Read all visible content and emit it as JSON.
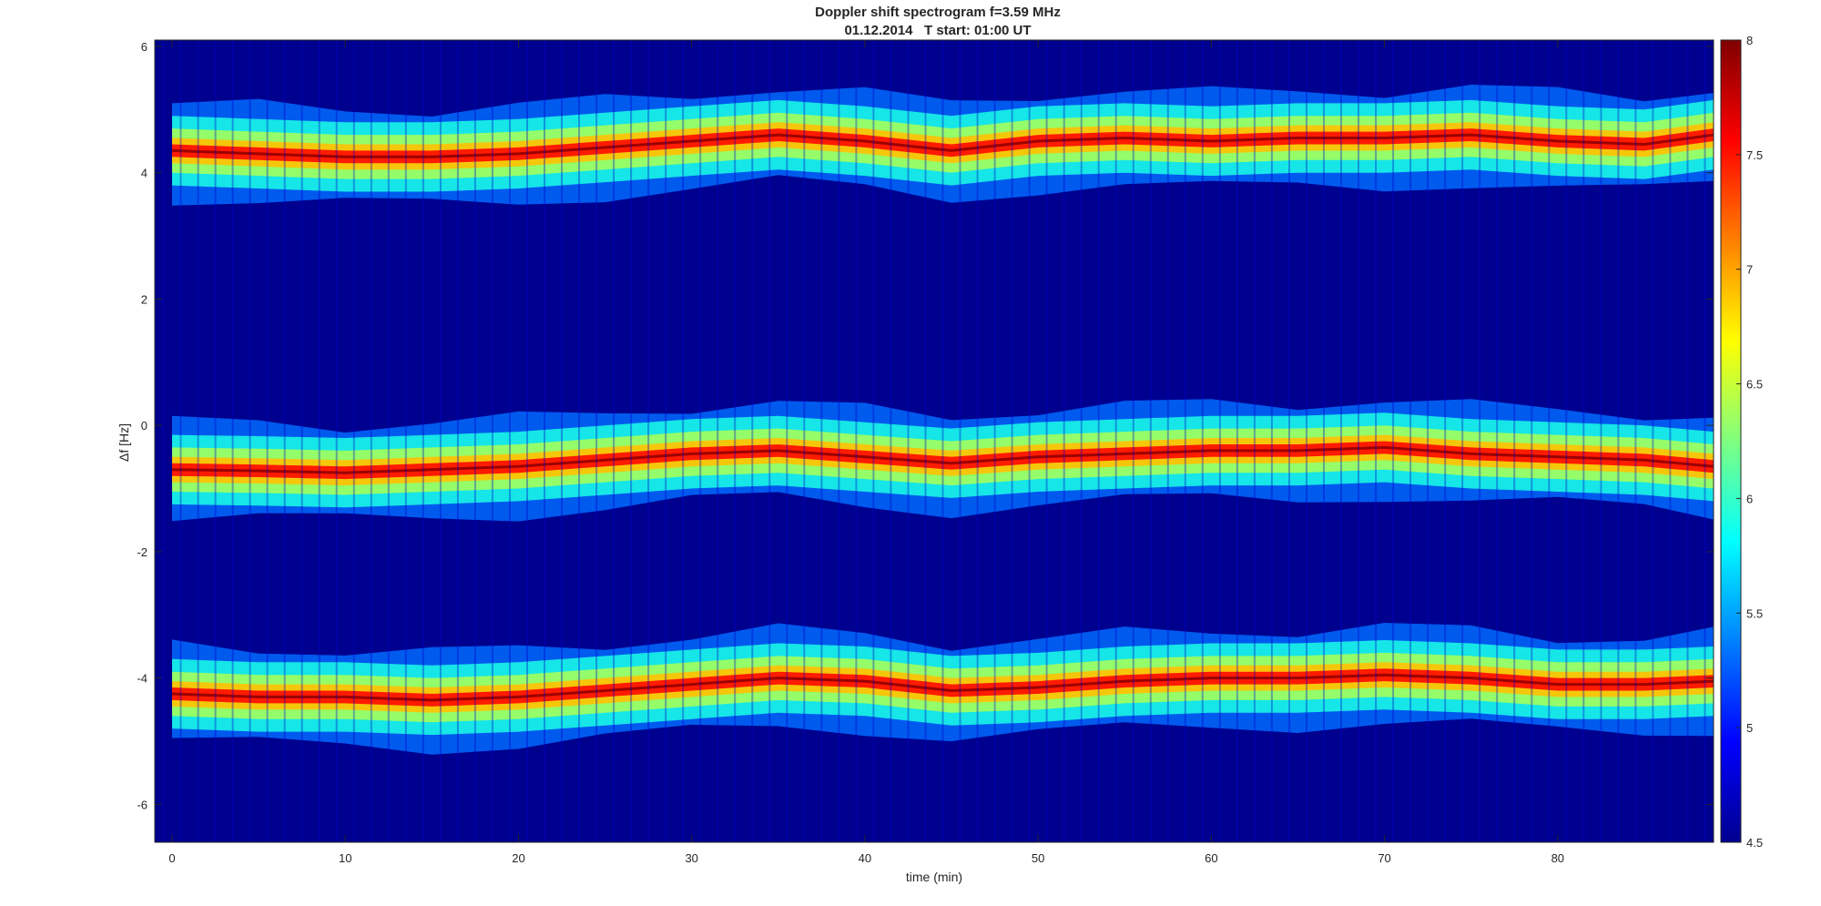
{
  "chart_data": {
    "type": "heatmap",
    "title": "Doppler shift spectrogram f=3.59 MHz",
    "subtitle": "01.12.2014   T start: 01:00 UT",
    "xlabel": "time (min)",
    "ylabel": "Δf [Hz]",
    "xlim": [
      -1,
      89
    ],
    "ylim": [
      -6.6,
      6.1
    ],
    "x_ticks": [
      "0",
      "10",
      "20",
      "30",
      "40",
      "50",
      "60",
      "70",
      "80"
    ],
    "y_ticks": [
      "-6",
      "-4",
      "-2",
      "0",
      "2",
      "4",
      "6"
    ],
    "colorbar": {
      "colormap": "jet",
      "range": [
        4.5,
        8
      ],
      "ticks": [
        "4.5",
        "5",
        "5.5",
        "6",
        "6.5",
        "7",
        "7.5",
        "8"
      ]
    },
    "grid": false,
    "background_value": 4.6,
    "series": [
      {
        "x": [
          0,
          5,
          10,
          15,
          20,
          25,
          30,
          35,
          40,
          45,
          50,
          55,
          60,
          65,
          70,
          75,
          80,
          85,
          89
        ],
        "y": [
          4.35,
          4.3,
          4.25,
          4.25,
          4.3,
          4.4,
          4.5,
          4.6,
          4.5,
          4.35,
          4.5,
          4.55,
          4.5,
          4.55,
          4.55,
          4.6,
          4.5,
          4.45,
          4.6
        ]
      },
      {
        "x": [
          0,
          5,
          10,
          15,
          20,
          25,
          30,
          35,
          40,
          45,
          50,
          55,
          60,
          65,
          70,
          75,
          80,
          85,
          89
        ],
        "y": [
          -0.7,
          -0.72,
          -0.75,
          -0.7,
          -0.65,
          -0.55,
          -0.45,
          -0.4,
          -0.5,
          -0.6,
          -0.5,
          -0.45,
          -0.4,
          -0.4,
          -0.35,
          -0.45,
          -0.5,
          -0.55,
          -0.65
        ]
      },
      {
        "x": [
          0,
          5,
          10,
          15,
          20,
          25,
          30,
          35,
          40,
          45,
          50,
          55,
          60,
          65,
          70,
          75,
          80,
          85,
          89
        ],
        "y": [
          -4.25,
          -4.3,
          -4.3,
          -4.35,
          -4.3,
          -4.2,
          -4.1,
          -4.0,
          -4.05,
          -4.2,
          -4.15,
          -4.05,
          -4.0,
          -4.0,
          -3.95,
          -4.0,
          -4.1,
          -4.1,
          -4.05
        ]
      }
    ]
  }
}
